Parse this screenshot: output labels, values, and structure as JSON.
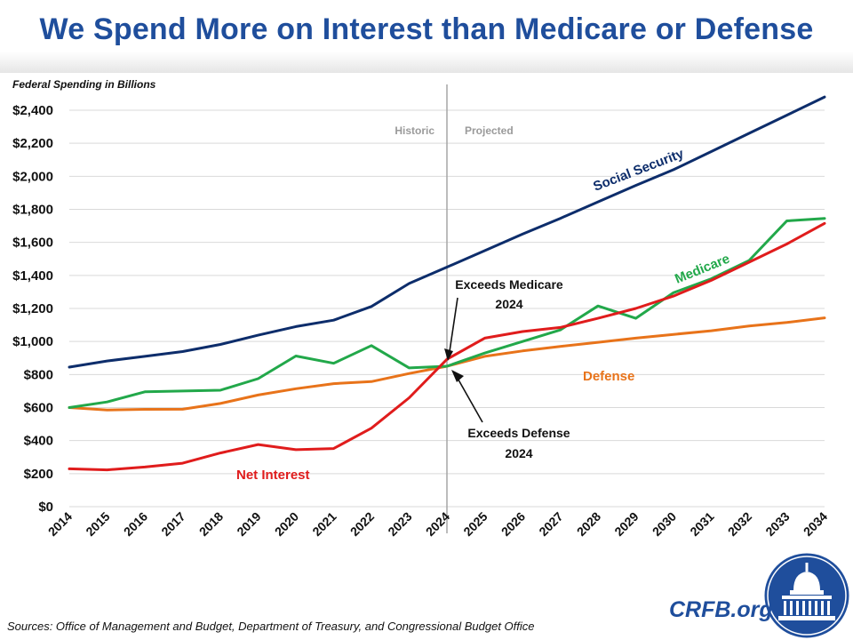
{
  "header": {
    "title": "We Spend More on Interest than Medicare or Defense"
  },
  "footer": {
    "source": "Sources: Office of Management and Budget, Department of Treasury, and Congressional Budget Office",
    "brand": "CRFB.org"
  },
  "colors": {
    "social_security": "#0d2d6b",
    "medicare": "#22a84a",
    "net_interest": "#e01c1c",
    "defense": "#e8731a",
    "title": "#1f4e9c",
    "logo": "#1f4e9c"
  },
  "chart_data": {
    "type": "line",
    "title": "",
    "ylabel": "Federal Spending in Billions",
    "xlabel": "",
    "ylim": [
      0,
      2400
    ],
    "yticks": [
      0,
      200,
      400,
      600,
      800,
      1000,
      1200,
      1400,
      1600,
      1800,
      2000,
      2200,
      2400
    ],
    "ytick_labels": [
      "$0",
      "$200",
      "$400",
      "$600",
      "$800",
      "$1,000",
      "$1,200",
      "$1,400",
      "$1,600",
      "$1,800",
      "$2,000",
      "$2,200",
      "$2,400"
    ],
    "grid": true,
    "x": [
      "2014",
      "2015",
      "2016",
      "2017",
      "2018",
      "2019",
      "2020",
      "2021",
      "2022",
      "2023",
      "2024",
      "2025",
      "2026",
      "2027",
      "2028",
      "2029",
      "2030",
      "2031",
      "2032",
      "2033",
      "2034"
    ],
    "divider_x": "2024",
    "region_labels": {
      "left": "Historic",
      "right": "Projected"
    },
    "series": [
      {
        "name": "Social Security",
        "key": "social_security",
        "values": [
          845,
          882,
          910,
          939,
          982,
          1038,
          1090,
          1129,
          1212,
          1351,
          1450,
          1550,
          1650,
          1745,
          1845,
          1945,
          2040,
          2150,
          2260,
          2370,
          2480
        ]
      },
      {
        "name": "Medicare",
        "key": "medicare",
        "values": [
          600,
          634,
          695,
          700,
          705,
          775,
          912,
          868,
          975,
          840,
          850,
          930,
          1000,
          1070,
          1215,
          1140,
          1295,
          1380,
          1490,
          1730,
          1745
        ]
      },
      {
        "name": "Net Interest",
        "key": "net_interest",
        "values": [
          229,
          223,
          240,
          263,
          325,
          376,
          345,
          352,
          475,
          659,
          892,
          1020,
          1060,
          1085,
          1140,
          1200,
          1275,
          1370,
          1480,
          1590,
          1715
        ]
      },
      {
        "name": "Defense",
        "key": "defense",
        "values": [
          600,
          585,
          589,
          590,
          625,
          676,
          714,
          745,
          757,
          806,
          850,
          910,
          943,
          970,
          995,
          1020,
          1043,
          1065,
          1094,
          1115,
          1143
        ]
      }
    ],
    "annotations": [
      {
        "name": "exceeds-medicare",
        "lines": [
          "Exceeds Medicare",
          "2024"
        ]
      },
      {
        "name": "exceeds-defense",
        "lines": [
          "Exceeds Defense",
          "2024"
        ]
      }
    ]
  }
}
